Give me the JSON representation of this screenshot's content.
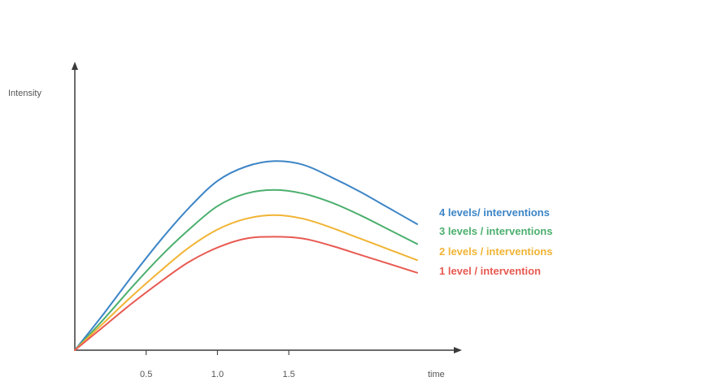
{
  "chart_data": {
    "type": "line",
    "title": "",
    "xlabel": "time",
    "ylabel": "Intensity",
    "xlim": [
      0,
      2.4
    ],
    "ylim": [
      0,
      1.25
    ],
    "x_ticks": [
      {
        "value": 0.5,
        "label": "0.5"
      },
      {
        "value": 1.0,
        "label": "1.0"
      },
      {
        "value": 1.5,
        "label": "1.5"
      }
    ],
    "grid": false,
    "legend": "inline at right end of each line",
    "series": [
      {
        "name": "4 levels/ interventions",
        "color": "#3d85c6",
        "x": [
          0,
          0.2,
          0.4,
          0.6,
          0.8,
          1.0,
          1.2,
          1.4,
          1.6,
          1.8,
          2.0,
          2.2,
          2.4
        ],
        "y": [
          0,
          0.2,
          0.41,
          0.61,
          0.79,
          0.94,
          1.02,
          1.05,
          1.03,
          0.96,
          0.88,
          0.79,
          0.7
        ]
      },
      {
        "name": "3 levels / interventions",
        "color": "#4caf6e",
        "x": [
          0,
          0.2,
          0.4,
          0.6,
          0.8,
          1.0,
          1.2,
          1.4,
          1.6,
          1.8,
          2.0,
          2.2,
          2.4
        ],
        "y": [
          0,
          0.17,
          0.35,
          0.52,
          0.67,
          0.8,
          0.87,
          0.89,
          0.87,
          0.82,
          0.75,
          0.67,
          0.59
        ]
      },
      {
        "name": "2 levels / interventions",
        "color": "#f1b434",
        "x": [
          0,
          0.2,
          0.4,
          0.6,
          0.8,
          1.0,
          1.2,
          1.4,
          1.6,
          1.8,
          2.0,
          2.2,
          2.4
        ],
        "y": [
          0,
          0.15,
          0.3,
          0.44,
          0.57,
          0.67,
          0.73,
          0.75,
          0.73,
          0.68,
          0.62,
          0.56,
          0.5
        ]
      },
      {
        "name": "1 level / intervention",
        "color": "#e85a52",
        "x": [
          0,
          0.2,
          0.4,
          0.6,
          0.8,
          1.0,
          1.2,
          1.4,
          1.6,
          1.8,
          2.0,
          2.2,
          2.4
        ],
        "y": [
          0,
          0.13,
          0.26,
          0.38,
          0.49,
          0.57,
          0.62,
          0.63,
          0.62,
          0.58,
          0.53,
          0.48,
          0.43
        ]
      }
    ]
  }
}
